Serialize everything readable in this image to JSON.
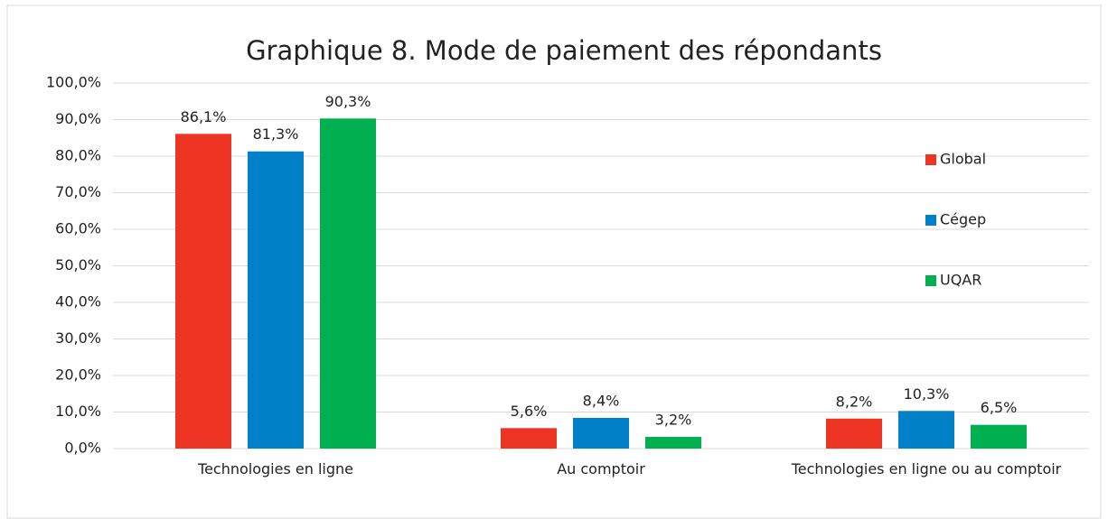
{
  "chart_data": {
    "type": "bar",
    "title": "Graphique 8. Mode de paiement des répondants",
    "categories": [
      "Technologies en ligne",
      "Au comptoir",
      "Technologies en ligne ou au comptoir"
    ],
    "series": [
      {
        "name": "Global",
        "color": "#ee3524",
        "values": [
          86.1,
          5.6,
          8.2
        ],
        "value_labels": [
          "86,1%",
          "5,6%",
          "8,2%"
        ]
      },
      {
        "name": "Cégep",
        "color": "#0080c6",
        "values": [
          81.3,
          8.4,
          10.3
        ],
        "value_labels": [
          "81,3%",
          "8,4%",
          "10,3%"
        ]
      },
      {
        "name": "UQAR",
        "color": "#00b050",
        "values": [
          90.3,
          3.2,
          6.5
        ],
        "value_labels": [
          "90,3%",
          "3,2%",
          "6,5%"
        ]
      }
    ],
    "ylim": [
      0,
      100
    ],
    "yticks": [
      {
        "value": 0,
        "label": "0,0%"
      },
      {
        "value": 10,
        "label": "10,0%"
      },
      {
        "value": 20,
        "label": "20,0%"
      },
      {
        "value": 30,
        "label": "30,0%"
      },
      {
        "value": 40,
        "label": "40,0%"
      },
      {
        "value": 50,
        "label": "50,0%"
      },
      {
        "value": 60,
        "label": "60,0%"
      },
      {
        "value": 70,
        "label": "70,0%"
      },
      {
        "value": 80,
        "label": "80,0%"
      },
      {
        "value": 90,
        "label": "90,0%"
      },
      {
        "value": 100,
        "label": "100,0%"
      }
    ],
    "grid": true,
    "legend": "right"
  }
}
